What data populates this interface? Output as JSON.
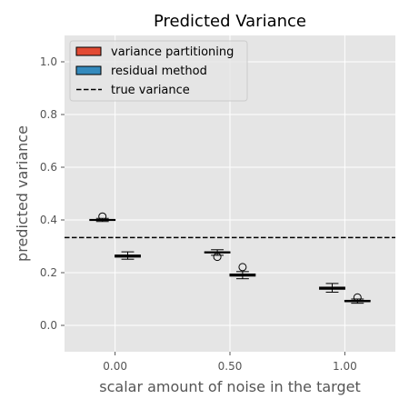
{
  "chart_data": {
    "type": "box",
    "title": "Predicted Variance",
    "xlabel": "scalar amount of noise in the target",
    "ylabel": "predicted variance",
    "categories": [
      "0.00",
      "0.50",
      "1.00"
    ],
    "x_positions": [
      0.0,
      0.5,
      1.0
    ],
    "xlim": [
      -0.22,
      1.22
    ],
    "ylim": [
      -0.1,
      1.1
    ],
    "y_ticks": [
      0.0,
      0.2,
      0.4,
      0.6,
      0.8,
      1.0
    ],
    "y_tick_labels": [
      "0.0",
      "0.2",
      "0.4",
      "0.6",
      "0.8",
      "1.0"
    ],
    "grid": true,
    "legend_position": "top-left",
    "true_variance": 0.333,
    "series": [
      {
        "name": "variance partitioning",
        "color": "#E24A33",
        "offset": -0.055,
        "boxes": [
          {
            "x": 0.0,
            "whislo": 0.394,
            "q1": 0.398,
            "med": 0.4,
            "q3": 0.402,
            "whishi": 0.406,
            "fliers": [
              0.413
            ]
          },
          {
            "x": 0.5,
            "whislo": 0.266,
            "q1": 0.275,
            "med": 0.277,
            "q3": 0.279,
            "whishi": 0.287,
            "fliers": [
              0.26
            ]
          },
          {
            "x": 1.0,
            "whislo": 0.126,
            "q1": 0.137,
            "med": 0.141,
            "q3": 0.145,
            "whishi": 0.159,
            "fliers": []
          }
        ]
      },
      {
        "name": "residual method",
        "color": "#348ABD",
        "offset": 0.055,
        "boxes": [
          {
            "x": 0.0,
            "whislo": 0.251,
            "q1": 0.259,
            "med": 0.262,
            "q3": 0.267,
            "whishi": 0.279,
            "fliers": []
          },
          {
            "x": 0.5,
            "whislo": 0.177,
            "q1": 0.187,
            "med": 0.191,
            "q3": 0.195,
            "whishi": 0.204,
            "fliers": [
              0.221
            ]
          },
          {
            "x": 1.0,
            "whislo": 0.084,
            "q1": 0.09,
            "med": 0.092,
            "q3": 0.095,
            "whishi": 0.1,
            "fliers": [
              0.106
            ]
          }
        ]
      }
    ],
    "legend": [
      {
        "label": "variance partitioning",
        "kind": "patch",
        "color": "#E24A33"
      },
      {
        "label": "residual method",
        "kind": "patch",
        "color": "#348ABD"
      },
      {
        "label": "true variance",
        "kind": "dashed-line",
        "color": "#000000"
      }
    ]
  }
}
